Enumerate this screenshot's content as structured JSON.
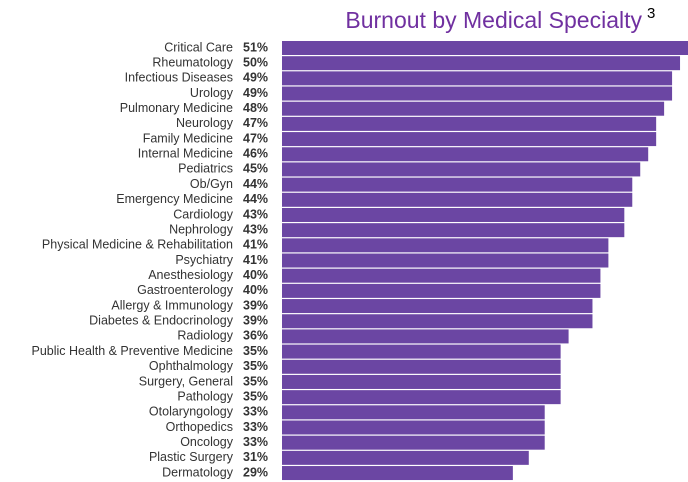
{
  "chart_data": {
    "type": "bar",
    "orientation": "horizontal",
    "title": "Burnout by Medical Specialty",
    "title_footnote": "3",
    "color": "#6b46a3",
    "categories": [
      "Critical Care",
      "Rheumatology",
      "Infectious Diseases",
      "Urology",
      "Pulmonary Medicine",
      "Neurology",
      "Family Medicine",
      "Internal Medicine",
      "Pediatrics",
      "Ob/Gyn",
      "Emergency Medicine",
      "Cardiology",
      "Nephrology",
      "Physical Medicine & Rehabilitation",
      "Psychiatry",
      "Anesthesiology",
      "Gastroenterology",
      "Allergy & Immunology",
      "Diabetes & Endocrinology",
      "Radiology",
      "Public Health & Preventive Medicine",
      "Ophthalmology",
      "Surgery, General",
      "Pathology",
      "Otolaryngology",
      "Orthopedics",
      "Oncology",
      "Plastic Surgery",
      "Dermatology"
    ],
    "values": [
      51,
      50,
      49,
      49,
      48,
      47,
      47,
      46,
      45,
      44,
      44,
      43,
      43,
      41,
      41,
      40,
      40,
      39,
      39,
      36,
      35,
      35,
      35,
      35,
      33,
      33,
      33,
      31,
      29
    ],
    "value_labels": [
      "51%",
      "50%",
      "49%",
      "49%",
      "48%",
      "47%",
      "47%",
      "46%",
      "45%",
      "44%",
      "44%",
      "43%",
      "43%",
      "41%",
      "41%",
      "40%",
      "40%",
      "39%",
      "39%",
      "36%",
      "35%",
      "35%",
      "35%",
      "35%",
      "33%",
      "33%",
      "33%",
      "31%",
      "29%"
    ]
  }
}
